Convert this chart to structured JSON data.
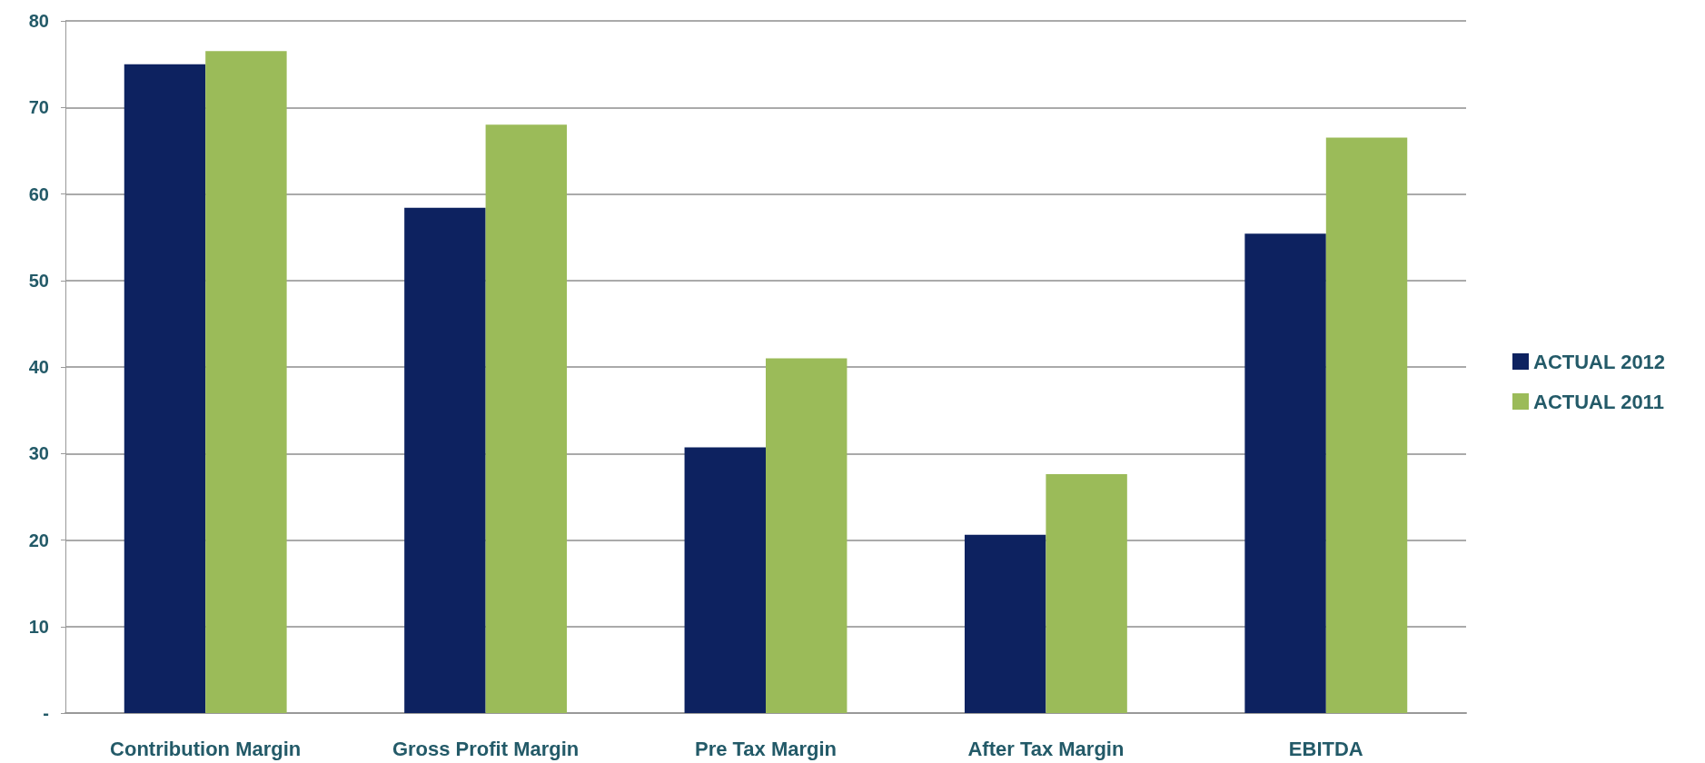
{
  "chart_data": {
    "type": "bar",
    "categories": [
      "Contribution Margin",
      "Gross Profit Margin",
      "Pre Tax Margin",
      "After Tax Margin",
      "EBITDA"
    ],
    "series": [
      {
        "name": "ACTUAL 2012",
        "color": "#0d2260",
        "values": [
          75,
          58.4,
          30.7,
          20.6,
          55.4
        ]
      },
      {
        "name": "ACTUAL 2011",
        "color": "#9bbb59",
        "values": [
          76.5,
          68,
          41,
          27.6,
          66.5
        ]
      }
    ],
    "ylim": [
      0,
      80
    ],
    "yticks": [
      {
        "value": 0,
        "label": "-"
      },
      10,
      20,
      30,
      40,
      50,
      60,
      70,
      80
    ],
    "grid": "y",
    "legend": "right"
  }
}
